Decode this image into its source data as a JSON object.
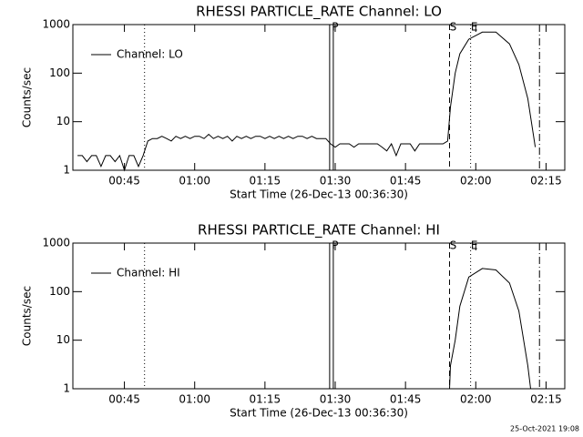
{
  "chart_data": [
    {
      "type": "line",
      "title": "RHESSI PARTICLE_RATE Channel: LO",
      "x_label": "Start Time (26-Dec-13 00:36:30)",
      "y_label": "Counts/sec",
      "x": [
        35,
        36,
        37,
        38,
        39,
        40,
        41,
        42,
        43,
        44,
        45,
        46,
        47,
        48,
        49,
        50,
        51,
        52,
        53,
        54,
        55,
        56,
        57,
        58,
        59,
        60,
        61,
        62,
        63,
        64,
        65,
        66,
        67,
        68,
        69,
        70,
        71,
        72,
        73,
        74,
        75,
        76,
        77,
        78,
        79,
        80,
        81,
        82,
        83,
        84,
        85,
        86,
        87,
        88,
        89,
        90,
        91,
        92,
        93,
        94,
        95,
        96,
        97,
        98,
        99,
        100,
        101,
        102,
        103,
        104,
        105,
        106,
        107,
        108,
        109,
        110,
        111,
        112,
        113,
        114,
        114.6,
        115.6,
        116.6,
        118.5,
        121.4,
        124.3,
        127.2,
        129.2,
        131.1,
        132.7
      ],
      "series": [
        {
          "name": "Channel: LO",
          "color": "#000000",
          "values": [
            2,
            2,
            1.5,
            2,
            2,
            1.2,
            2,
            2,
            1.5,
            2,
            1,
            2,
            2,
            1.2,
            2,
            4,
            4.5,
            4.5,
            5,
            4.5,
            4,
            5,
            4.5,
            5,
            4.5,
            5,
            5,
            4.5,
            5.5,
            4.5,
            5,
            4.5,
            5,
            4,
            5,
            4.5,
            5,
            4.5,
            5,
            5,
            4.5,
            5,
            4.5,
            5,
            4.5,
            5,
            4.5,
            5,
            5,
            4.5,
            5,
            4.5,
            4.5,
            4.5,
            3.5,
            3,
            3.5,
            3.5,
            3.5,
            3,
            3.5,
            3.5,
            3.5,
            3.5,
            3.5,
            3,
            2.5,
            3.5,
            2,
            3.5,
            3.5,
            3.5,
            2.5,
            3.5,
            3.5,
            3.5,
            3.5,
            3.5,
            3.5,
            4,
            20,
            100,
            250,
            500,
            700,
            700,
            400,
            150,
            30,
            3
          ]
        }
      ],
      "xlim": [
        34,
        139
      ],
      "ylim": [
        1,
        1000
      ],
      "log_y": true,
      "legend": "upper left",
      "xticks": [
        {
          "value": 45,
          "label": "00:45"
        },
        {
          "value": 60,
          "label": "01:00"
        },
        {
          "value": 75,
          "label": "01:15"
        },
        {
          "value": 90,
          "label": "01:30"
        },
        {
          "value": 105,
          "label": "01:45"
        },
        {
          "value": 120,
          "label": "02:00"
        },
        {
          "value": 135,
          "label": "02:15"
        }
      ],
      "yticks": [
        1,
        10,
        100,
        1000
      ],
      "markers": [
        {
          "x": 49.3,
          "style": "dotted"
        },
        {
          "x": 89.2,
          "style": "double",
          "label": "P"
        },
        {
          "x": 114.4,
          "style": "dashed",
          "label": "S"
        },
        {
          "x": 118.9,
          "style": "dotted",
          "label": "E"
        },
        {
          "x": 133.6,
          "style": "dashdot"
        }
      ]
    },
    {
      "type": "line",
      "title": "RHESSI PARTICLE_RATE Channel: HI",
      "x_label": "Start Time (26-Dec-13 00:36:30)",
      "y_label": "Counts/sec",
      "x": [
        114.4,
        114.6,
        115.6,
        116.6,
        118.5,
        121.4,
        124.3,
        127.2,
        129.2,
        131.1,
        131.7
      ],
      "series": [
        {
          "name": "Channel: HI",
          "color": "#000000",
          "values": [
            1,
            3,
            10,
            50,
            200,
            300,
            280,
            150,
            40,
            3,
            1
          ]
        }
      ],
      "xlim": [
        34,
        139
      ],
      "ylim": [
        1,
        1000
      ],
      "log_y": true,
      "legend": "upper left",
      "xticks": [
        {
          "value": 45,
          "label": "00:45"
        },
        {
          "value": 60,
          "label": "01:00"
        },
        {
          "value": 75,
          "label": "01:15"
        },
        {
          "value": 90,
          "label": "01:30"
        },
        {
          "value": 105,
          "label": "01:45"
        },
        {
          "value": 120,
          "label": "02:00"
        },
        {
          "value": 135,
          "label": "02:15"
        }
      ],
      "yticks": [
        1,
        10,
        100,
        1000
      ],
      "markers": [
        {
          "x": 49.3,
          "style": "dotted"
        },
        {
          "x": 89.2,
          "style": "double",
          "label": "P"
        },
        {
          "x": 114.4,
          "style": "dashed",
          "label": "S"
        },
        {
          "x": 118.9,
          "style": "dotted",
          "label": "E"
        },
        {
          "x": 133.6,
          "style": "dashdot"
        }
      ]
    }
  ],
  "footer": "25-Oct-2021 19:08"
}
